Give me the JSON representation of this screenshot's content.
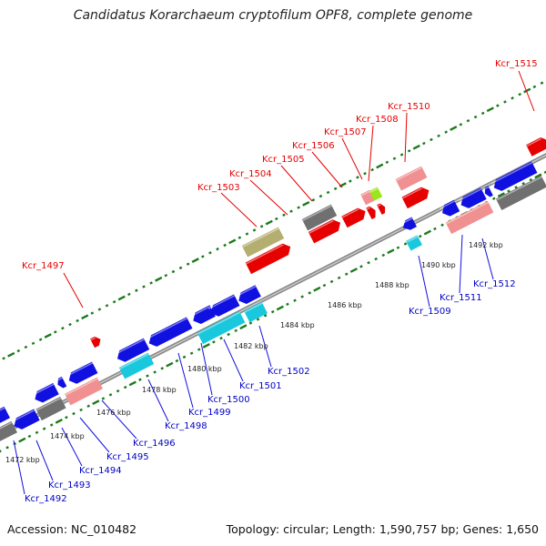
{
  "title": "Candidatus Korarchaeum cryptofilum OPF8, complete genome",
  "accession": "Accession: NC_010482",
  "summary": "Topology: circular; Length: 1,590,757 bp; Genes: 1,650",
  "colors": {
    "forward_cds": "#e60000",
    "reverse_cds": "#1010e0",
    "forward_rna": "#f09090",
    "reverse_rna": "#f09090",
    "pseudogene": "#707070",
    "forward_other": "#b4ae70",
    "reverse_cyan": "#19c8dc",
    "tick": "#1a7a1a",
    "backbone": "#8a8a8a"
  },
  "kbp_labels": [
    "1472 kbp",
    "1474 kbp",
    "1476 kbp",
    "1478 kbp",
    "1480 kbp",
    "1482 kbp",
    "1484 kbp",
    "1486 kbp",
    "1488 kbp",
    "1490 kbp",
    "1492 kbp"
  ],
  "gene_labels_top": [
    "Kcr_1497",
    "Kcr_1503",
    "Kcr_1504",
    "Kcr_1505",
    "Kcr_1506",
    "Kcr_1507",
    "Kcr_1508",
    "Kcr_1510",
    "Kcr_1515"
  ],
  "gene_labels_bottom": [
    "Kcr_1492",
    "Kcr_1493",
    "Kcr_1494",
    "Kcr_1495",
    "Kcr_1496",
    "Kcr_1498",
    "Kcr_1499",
    "Kcr_1500",
    "Kcr_1501",
    "Kcr_1502",
    "Kcr_1509",
    "Kcr_1511",
    "Kcr_1512"
  ]
}
